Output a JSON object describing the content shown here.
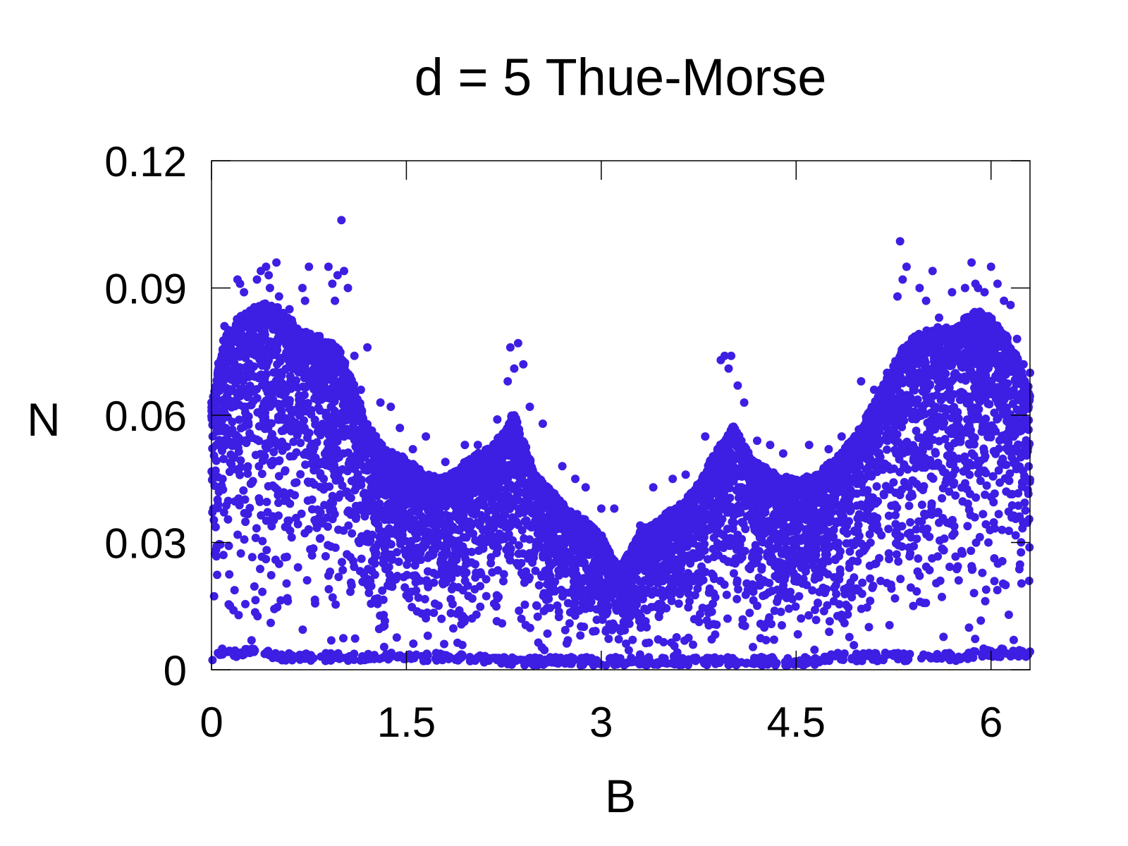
{
  "chart_data": {
    "type": "scatter",
    "title": "d = 5 Thue-Morse",
    "xlabel": "B",
    "ylabel": "N",
    "xlim": [
      0,
      6.3
    ],
    "ylim": [
      0,
      0.12
    ],
    "xticks": [
      0,
      1.5,
      3,
      4.5,
      6
    ],
    "xtick_labels": [
      "0",
      "1.5",
      "3",
      "4.5",
      "6"
    ],
    "yticks": [
      0,
      0.03,
      0.06,
      0.09,
      0.12
    ],
    "ytick_labels": [
      "0",
      "0.03",
      "0.06",
      "0.09",
      "0.12"
    ],
    "grid": false,
    "legend": "none",
    "point_color": "#3d1ee3",
    "envelope": {
      "x": [
        0,
        0.05,
        0.1,
        0.2,
        0.3,
        0.4,
        0.5,
        0.6,
        0.7,
        0.8,
        0.9,
        1.0,
        1.1,
        1.2,
        1.35,
        1.5,
        1.65,
        1.8,
        1.95,
        2.05,
        2.15,
        2.25,
        2.32,
        2.4,
        2.5,
        2.6,
        2.75,
        2.9,
        3.0,
        3.08,
        3.15,
        3.22,
        3.3,
        3.45,
        3.6,
        3.75,
        3.85,
        3.95,
        4.02,
        4.1,
        4.2,
        4.35,
        4.5,
        4.65,
        4.8,
        4.95,
        5.1,
        5.2,
        5.3,
        5.4,
        5.5,
        5.6,
        5.7,
        5.8,
        5.9,
        6.0,
        6.1,
        6.2,
        6.3
      ],
      "upper": [
        0.062,
        0.072,
        0.079,
        0.083,
        0.085,
        0.087,
        0.086,
        0.083,
        0.08,
        0.079,
        0.078,
        0.075,
        0.067,
        0.058,
        0.052,
        0.05,
        0.046,
        0.046,
        0.049,
        0.051,
        0.053,
        0.056,
        0.061,
        0.055,
        0.046,
        0.043,
        0.038,
        0.035,
        0.032,
        0.027,
        0.025,
        0.028,
        0.033,
        0.036,
        0.039,
        0.044,
        0.05,
        0.055,
        0.058,
        0.053,
        0.049,
        0.046,
        0.045,
        0.046,
        0.05,
        0.055,
        0.063,
        0.069,
        0.075,
        0.079,
        0.08,
        0.081,
        0.081,
        0.083,
        0.085,
        0.083,
        0.08,
        0.074,
        0.066
      ],
      "lower": [
        0.002,
        0.003,
        0.003,
        0.003,
        0.003,
        0.003,
        0.002,
        0.002,
        0.002,
        0.002,
        0.002,
        0.002,
        0.002,
        0.002,
        0.002,
        0.002,
        0.002,
        0.002,
        0.002,
        0.002,
        0.001,
        0.001,
        0.001,
        0.001,
        0.001,
        0.001,
        0.001,
        0.001,
        0.001,
        0.001,
        0.001,
        0.001,
        0.001,
        0.001,
        0.001,
        0.001,
        0.001,
        0.001,
        0.001,
        0.001,
        0.001,
        0.001,
        0.001,
        0.001,
        0.002,
        0.002,
        0.002,
        0.002,
        0.002,
        0.002,
        0.002,
        0.002,
        0.002,
        0.002,
        0.003,
        0.003,
        0.003,
        0.003,
        0.003
      ]
    },
    "outliers": {
      "x": [
        0.0,
        0.03,
        0.1,
        0.2,
        0.22,
        0.25,
        0.35,
        0.38,
        0.42,
        0.44,
        0.45,
        0.5,
        0.52,
        0.6,
        0.7,
        0.72,
        0.75,
        0.9,
        0.93,
        0.95,
        0.97,
        1.0,
        1.02,
        1.05,
        1.1,
        1.15,
        1.2,
        1.3,
        1.38,
        1.45,
        1.55,
        1.65,
        1.8,
        1.95,
        2.05,
        2.2,
        2.28,
        2.3,
        2.33,
        2.36,
        2.4,
        2.45,
        2.55,
        2.7,
        2.8,
        2.88,
        3.0,
        3.1,
        3.3,
        3.4,
        3.55,
        3.65,
        3.8,
        3.92,
        3.95,
        3.98,
        4.0,
        4.05,
        4.1,
        4.2,
        4.3,
        4.4,
        4.6,
        4.75,
        4.85,
        5.0,
        5.1,
        5.2,
        5.28,
        5.3,
        5.32,
        5.35,
        5.45,
        5.5,
        5.55,
        5.6,
        5.7,
        5.8,
        5.85,
        5.88,
        5.9,
        5.95,
        6.0,
        6.05,
        6.1,
        6.15,
        6.2,
        6.25,
        6.3
      ],
      "y": [
        0.063,
        0.06,
        0.081,
        0.092,
        0.091,
        0.089,
        0.092,
        0.094,
        0.095,
        0.093,
        0.09,
        0.096,
        0.088,
        0.085,
        0.09,
        0.087,
        0.095,
        0.095,
        0.091,
        0.087,
        0.093,
        0.106,
        0.094,
        0.09,
        0.074,
        0.066,
        0.076,
        0.063,
        0.062,
        0.057,
        0.052,
        0.055,
        0.049,
        0.053,
        0.053,
        0.059,
        0.068,
        0.076,
        0.071,
        0.077,
        0.072,
        0.062,
        0.058,
        0.048,
        0.045,
        0.043,
        0.038,
        0.038,
        0.034,
        0.043,
        0.045,
        0.046,
        0.055,
        0.073,
        0.074,
        0.071,
        0.074,
        0.067,
        0.063,
        0.054,
        0.053,
        0.051,
        0.053,
        0.052,
        0.055,
        0.068,
        0.066,
        0.07,
        0.088,
        0.101,
        0.092,
        0.095,
        0.09,
        0.087,
        0.094,
        0.083,
        0.089,
        0.09,
        0.096,
        0.091,
        0.09,
        0.089,
        0.095,
        0.091,
        0.087,
        0.086,
        0.078,
        0.072,
        0.07
      ]
    }
  }
}
